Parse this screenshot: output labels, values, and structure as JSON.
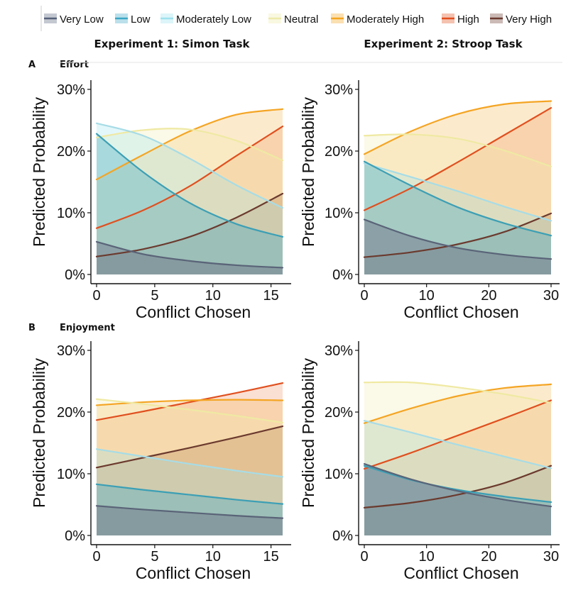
{
  "legend": [
    {
      "label": "Very Low",
      "color": "#56627a"
    },
    {
      "label": "Low",
      "color": "#3ba7c6"
    },
    {
      "label": "Moderately Low",
      "color": "#9ee1ee"
    },
    {
      "label": "Neutral",
      "color": "#eeeaaa"
    },
    {
      "label": "Moderately High",
      "color": "#f4a51f"
    },
    {
      "label": "High",
      "color": "#e14f1e"
    },
    {
      "label": "Very High",
      "color": "#6a3a2f"
    }
  ],
  "columns": [
    "Experiment 1: Simon Task",
    "Experiment 2: Stroop Task"
  ],
  "rows": [
    {
      "letter": "A",
      "title": "Effort"
    },
    {
      "letter": "B",
      "title": "Enjoyment"
    }
  ],
  "chart_data": [
    {
      "type": "area",
      "row": "A",
      "column": "Experiment 1: Simon Task",
      "xlabel": "Conflict Chosen",
      "ylabel": "Predicted Probability",
      "xlim": [
        0,
        16
      ],
      "ylim": [
        0,
        0.3
      ],
      "xticks": [
        0,
        5,
        10,
        15
      ],
      "yticks": [
        0,
        0.1,
        0.2,
        0.3
      ],
      "x": [
        0,
        4,
        8,
        12,
        16
      ],
      "series": [
        {
          "name": "Very Low",
          "values": [
            0.053,
            0.033,
            0.022,
            0.015,
            0.011
          ]
        },
        {
          "name": "Low",
          "values": [
            0.228,
            0.166,
            0.116,
            0.082,
            0.061
          ]
        },
        {
          "name": "Moderately Low",
          "values": [
            0.245,
            0.225,
            0.188,
            0.145,
            0.108
          ]
        },
        {
          "name": "Neutral",
          "values": [
            0.222,
            0.234,
            0.235,
            0.217,
            0.185
          ]
        },
        {
          "name": "Moderately High",
          "values": [
            0.154,
            0.194,
            0.232,
            0.259,
            0.268
          ]
        },
        {
          "name": "High",
          "values": [
            0.075,
            0.104,
            0.143,
            0.192,
            0.24
          ]
        },
        {
          "name": "Very High",
          "values": [
            0.029,
            0.041,
            0.061,
            0.092,
            0.131
          ]
        }
      ]
    },
    {
      "type": "area",
      "row": "A",
      "column": "Experiment 2: Stroop Task",
      "xlabel": "Conflict Chosen",
      "ylabel": "Predicted Probability",
      "xlim": [
        0,
        30
      ],
      "ylim": [
        0,
        0.3
      ],
      "xticks": [
        0,
        10,
        20,
        30
      ],
      "yticks": [
        0,
        0.1,
        0.2,
        0.3
      ],
      "x": [
        0,
        7.5,
        15,
        22.5,
        30
      ],
      "series": [
        {
          "name": "Very Low",
          "values": [
            0.089,
            0.062,
            0.043,
            0.032,
            0.025
          ]
        },
        {
          "name": "Low",
          "values": [
            0.183,
            0.144,
            0.109,
            0.083,
            0.063
          ]
        },
        {
          "name": "Moderately Low",
          "values": [
            0.18,
            0.158,
            0.135,
            0.11,
            0.087
          ]
        },
        {
          "name": "Neutral",
          "values": [
            0.225,
            0.227,
            0.22,
            0.201,
            0.175
          ]
        },
        {
          "name": "Moderately High",
          "values": [
            0.195,
            0.232,
            0.26,
            0.276,
            0.281
          ]
        },
        {
          "name": "High",
          "values": [
            0.104,
            0.14,
            0.182,
            0.226,
            0.27
          ]
        },
        {
          "name": "Very High",
          "values": [
            0.028,
            0.036,
            0.049,
            0.069,
            0.099
          ]
        }
      ]
    },
    {
      "type": "area",
      "row": "B",
      "column": "Experiment 1: Simon Task",
      "xlabel": "Conflict Chosen",
      "ylabel": "Predicted Probability",
      "xlim": [
        0,
        16
      ],
      "ylim": [
        0,
        0.3
      ],
      "xticks": [
        0,
        5,
        10,
        15
      ],
      "yticks": [
        0,
        0.1,
        0.2,
        0.3
      ],
      "x": [
        0,
        4,
        8,
        12,
        16
      ],
      "series": [
        {
          "name": "Very Low",
          "values": [
            0.048,
            0.042,
            0.037,
            0.032,
            0.028
          ]
        },
        {
          "name": "Low",
          "values": [
            0.083,
            0.074,
            0.066,
            0.058,
            0.051
          ]
        },
        {
          "name": "Moderately Low",
          "values": [
            0.14,
            0.128,
            0.116,
            0.105,
            0.095
          ]
        },
        {
          "name": "Neutral",
          "values": [
            0.221,
            0.213,
            0.204,
            0.194,
            0.183
          ]
        },
        {
          "name": "Moderately High",
          "values": [
            0.211,
            0.216,
            0.219,
            0.22,
            0.219
          ]
        },
        {
          "name": "High",
          "values": [
            0.187,
            0.201,
            0.216,
            0.231,
            0.247
          ]
        },
        {
          "name": "Very High",
          "values": [
            0.11,
            0.126,
            0.142,
            0.159,
            0.177
          ]
        }
      ]
    },
    {
      "type": "area",
      "row": "B",
      "column": "Experiment 2: Stroop Task",
      "xlabel": "Conflict Chosen",
      "ylabel": "Predicted Probability",
      "xlim": [
        0,
        30
      ],
      "ylim": [
        0,
        0.3
      ],
      "xticks": [
        0,
        10,
        20,
        30
      ],
      "yticks": [
        0,
        0.1,
        0.2,
        0.3
      ],
      "x": [
        0,
        7.5,
        15,
        22.5,
        30
      ],
      "series": [
        {
          "name": "Very Low",
          "values": [
            0.116,
            0.091,
            0.072,
            0.058,
            0.047
          ]
        },
        {
          "name": "Low",
          "values": [
            0.113,
            0.09,
            0.074,
            0.063,
            0.054
          ]
        },
        {
          "name": "Moderately Low",
          "values": [
            0.186,
            0.167,
            0.147,
            0.128,
            0.109
          ]
        },
        {
          "name": "Neutral",
          "values": [
            0.248,
            0.248,
            0.24,
            0.229,
            0.215
          ]
        },
        {
          "name": "Moderately High",
          "values": [
            0.182,
            0.206,
            0.226,
            0.239,
            0.245
          ]
        },
        {
          "name": "High",
          "values": [
            0.108,
            0.134,
            0.162,
            0.19,
            0.219
          ]
        },
        {
          "name": "Very High",
          "values": [
            0.045,
            0.053,
            0.066,
            0.085,
            0.113
          ]
        }
      ]
    }
  ]
}
